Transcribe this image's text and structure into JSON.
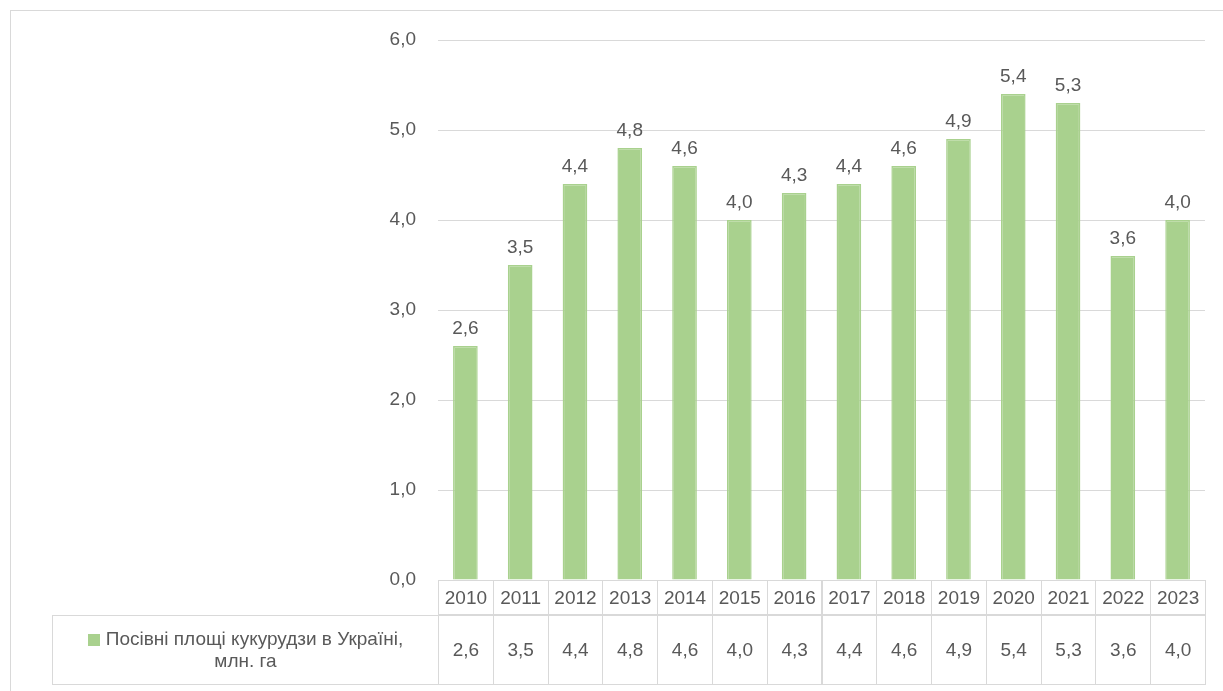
{
  "chart_data": {
    "type": "bar",
    "categories": [
      "2010",
      "2011",
      "2012",
      "2013",
      "2014",
      "2015",
      "2016",
      "2017",
      "2018",
      "2019",
      "2020",
      "2021",
      "2022",
      "2023"
    ],
    "series": [
      {
        "name": "Посівні площі кукурудзи в Україні, млн. га",
        "color": "#a9d18e",
        "values": [
          2.6,
          3.5,
          4.4,
          4.8,
          4.6,
          4.0,
          4.3,
          4.4,
          4.6,
          4.9,
          5.4,
          5.3,
          3.6,
          4.0
        ],
        "value_labels": [
          "2,6",
          "3,5",
          "4,4",
          "4,8",
          "4,6",
          "4,0",
          "4,3",
          "4,4",
          "4,6",
          "4,9",
          "5,4",
          "5,3",
          "3,6",
          "4,0"
        ]
      }
    ],
    "ylim": [
      0,
      6
    ],
    "yticks": [
      {
        "value": 0,
        "label": "0,0"
      },
      {
        "value": 1,
        "label": "1,0"
      },
      {
        "value": 2,
        "label": "2,0"
      },
      {
        "value": 3,
        "label": "3,0"
      },
      {
        "value": 4,
        "label": "4,0"
      },
      {
        "value": 5,
        "label": "5,0"
      },
      {
        "value": 6,
        "label": "6,0"
      }
    ],
    "grid": "y",
    "legend": "bottom"
  }
}
